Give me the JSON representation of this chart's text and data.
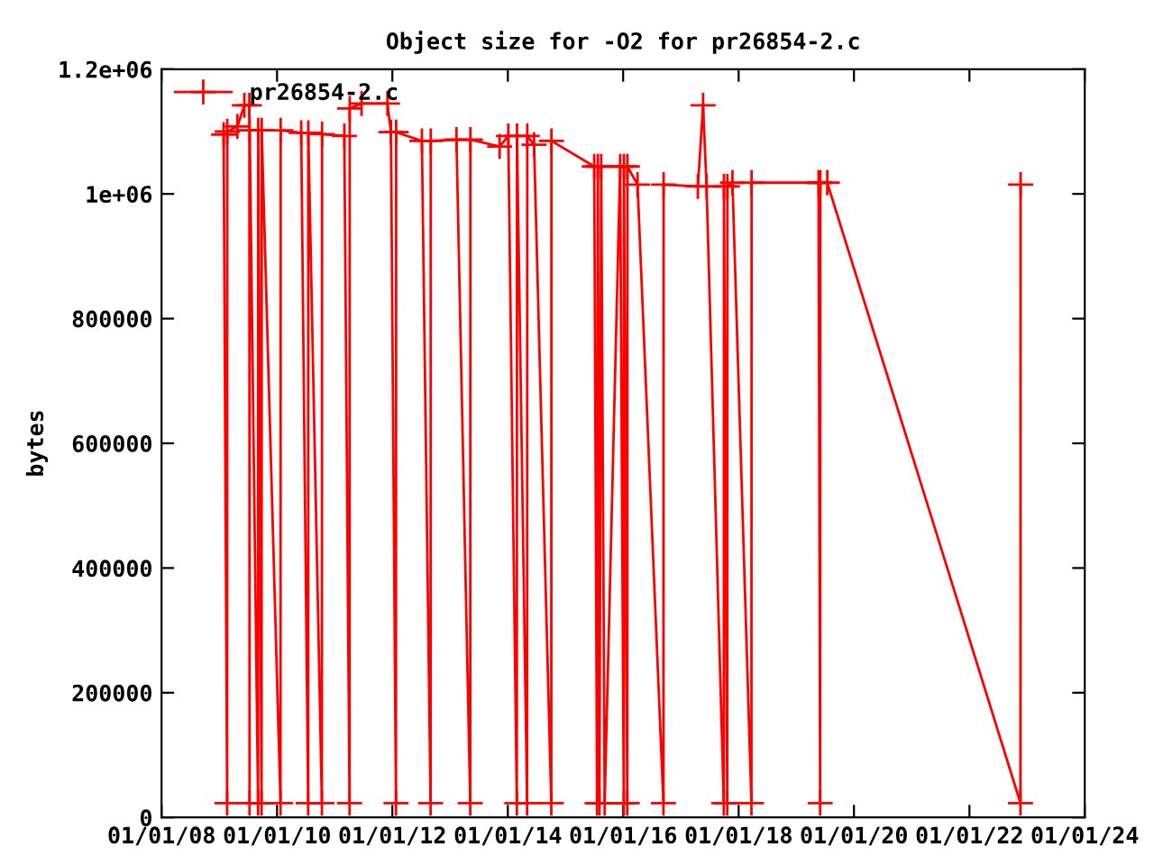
{
  "chart_data": {
    "type": "line",
    "title": "Object size for -O2 for pr26854-2.c",
    "ylabel": "bytes",
    "series": [
      {
        "name": "pr26854-2.c",
        "color": "#ff0000",
        "x": [
          "2009-01-28",
          "2009-02-19",
          "2009-02-20",
          "2009-04-25",
          "2009-06-08",
          "2009-07-10",
          "2009-07-11",
          "2009-07-12",
          "2009-09-03",
          "2009-09-04",
          "2009-09-25",
          "2009-09-26",
          "2010-01-23",
          "2010-01-24",
          "2010-06-03",
          "2010-07-17",
          "2010-07-18",
          "2010-10-12",
          "2010-10-13",
          "2011-03-03",
          "2011-04-05",
          "2011-04-06",
          "2011-06-20",
          "2011-12-01",
          "2011-12-23",
          "2012-01-24",
          "2012-01-25",
          "2012-07-06",
          "2012-08-30",
          "2012-08-31",
          "2013-02-10",
          "2013-05-08",
          "2013-05-09",
          "2013-11-10",
          "2014-01-04",
          "2014-02-27",
          "2014-02-28",
          "2014-05-03",
          "2014-05-04",
          "2014-06-16",
          "2014-10-03",
          "2014-10-04",
          "2015-07-02",
          "2015-07-20",
          "2015-07-25",
          "2015-08-04",
          "2015-08-15",
          "2015-09-06",
          "2015-12-13",
          "2016-01-05",
          "2016-01-06",
          "2016-01-27",
          "2016-01-28",
          "2016-04-01",
          "2016-09-12",
          "2016-09-13",
          "2017-04-18",
          "2017-05-21",
          "2017-06-12",
          "2017-09-29",
          "2017-09-30",
          "2017-10-21",
          "2017-10-22",
          "2017-11-23",
          "2018-03-23",
          "2018-03-24",
          "2019-05-22",
          "2019-06-01",
          "2019-06-02",
          "2019-07-16",
          "2022-11-20",
          "2022-11-21"
        ],
        "values": [
          1095000,
          23000,
          1100000,
          1108000,
          1142000,
          1142000,
          23000,
          1102000,
          23000,
          1102000,
          23000,
          1102000,
          23000,
          1102000,
          1098000,
          23000,
          1098000,
          23000,
          1096000,
          1093000,
          23000,
          1137000,
          1145000,
          1145000,
          1099000,
          23000,
          1099000,
          1085000,
          23000,
          1085000,
          1087000,
          23000,
          1087000,
          1076000,
          1093000,
          23000,
          1093000,
          23000,
          1093000,
          1079000,
          23000,
          1085000,
          1044000,
          23000,
          1044000,
          23000,
          1044000,
          23000,
          1044000,
          23000,
          1044000,
          23000,
          1044000,
          1015000,
          23000,
          1015000,
          1012000,
          1142000,
          1012000,
          23000,
          1012000,
          23000,
          1012000,
          1018000,
          23000,
          1018000,
          1018000,
          23000,
          1018000,
          1018000,
          23000,
          1015000
        ]
      }
    ],
    "xlim": [
      "2008-01-01",
      "2024-01-01"
    ],
    "xticks": [
      {
        "value": "2008-01-01",
        "label": "01/01/08"
      },
      {
        "value": "2010-01-01",
        "label": "01/01/10"
      },
      {
        "value": "2012-01-01",
        "label": "01/01/12"
      },
      {
        "value": "2014-01-01",
        "label": "01/01/14"
      },
      {
        "value": "2016-01-01",
        "label": "01/01/16"
      },
      {
        "value": "2018-01-01",
        "label": "01/01/18"
      },
      {
        "value": "2020-01-01",
        "label": "01/01/20"
      },
      {
        "value": "2022-01-01",
        "label": "01/01/22"
      },
      {
        "value": "2024-01-01",
        "label": "01/01/24"
      }
    ],
    "ylim": [
      0,
      1200000
    ],
    "yticks": [
      0,
      200000,
      400000,
      600000,
      800000,
      {
        "value": 1000000,
        "label": "1e+06"
      },
      {
        "value": 1200000,
        "label": "1.2e+06"
      }
    ],
    "marker": "cross",
    "line_style": "solid",
    "legend": "top left",
    "grid": false
  }
}
